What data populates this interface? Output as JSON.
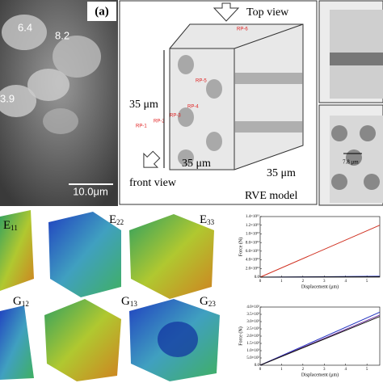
{
  "panel_a": {
    "label": "(a)",
    "dims": [
      "6.4",
      "8.2",
      "3.9"
    ],
    "scale_bar": "10.0μm"
  },
  "rve": {
    "top_view": "Top view",
    "reference_points": [
      "RP-6",
      "RP-5",
      "RP-4",
      "RP-3",
      "RP-2",
      "RP-1"
    ],
    "dims": [
      "35 μm",
      "35 μm",
      "35 μm"
    ],
    "front_view": "front view",
    "caption": "RVE model",
    "spacing": "7.8 μm"
  },
  "moduli": [
    {
      "symbol": "E",
      "sub": "11"
    },
    {
      "symbol": "E",
      "sub": "22"
    },
    {
      "symbol": "E",
      "sub": "33"
    },
    {
      "symbol": "G",
      "sub": "12"
    },
    {
      "symbol": "G",
      "sub": "13"
    },
    {
      "symbol": "G",
      "sub": "23"
    }
  ],
  "plots": [
    {
      "x_label": "Displacement (μm)",
      "y_label": "Force (N)",
      "xlim": [
        0,
        5.6
      ],
      "ylim": [
        0,
        14000000000000.0
      ],
      "xticks": [
        0,
        1,
        2,
        3,
        4,
        5
      ],
      "yticks": [
        {
          "value": 0,
          "label": "0.0"
        },
        {
          "value": 2000000000000.0,
          "label": "2.0×10¹²"
        },
        {
          "value": 4000000000000.0,
          "label": "4.0×10¹²"
        },
        {
          "value": 6000000000000.0,
          "label": "6.0×10¹²"
        },
        {
          "value": 8000000000000.0,
          "label": "8.0×10¹²"
        },
        {
          "value": 10000000000000.0,
          "label": "1.0×10¹³"
        },
        {
          "value": 12000000000000.0,
          "label": "1.2×10¹³"
        },
        {
          "value": 14000000000000.0,
          "label": "1.4×10¹³"
        }
      ],
      "series": [
        {
          "color": "#d03020",
          "x": [
            0,
            5.6
          ],
          "values": [
            0,
            12000000000000.0
          ]
        },
        {
          "color": "#2030c0",
          "x": [
            0,
            5.6
          ],
          "values": [
            0,
            200000000000.0
          ]
        },
        {
          "color": "#111111",
          "x": [
            0,
            5.6
          ],
          "values": [
            0,
            100000000000.0
          ]
        }
      ]
    },
    {
      "x_label": "Displacement (μm)",
      "y_label": "Force (N)",
      "xlim": [
        0,
        5.6
      ],
      "ylim": [
        0,
        4000
      ],
      "xticks": [
        0,
        1,
        2,
        3,
        4,
        5
      ],
      "yticks": [
        {
          "value": 0,
          "label": "0.0"
        },
        {
          "value": 500,
          "label": "5.0×10²"
        },
        {
          "value": 1000,
          "label": "1.0×10³"
        },
        {
          "value": 1500,
          "label": "1.5×10³"
        },
        {
          "value": 2000,
          "label": "2.0×10³"
        },
        {
          "value": 2500,
          "label": "2.5×10³"
        },
        {
          "value": 3000,
          "label": "3.0×10³"
        },
        {
          "value": 3500,
          "label": "3.5×10³"
        },
        {
          "value": 4000,
          "label": "4.0×10³"
        }
      ],
      "series": [
        {
          "color": "#2030c0",
          "x": [
            0,
            5.6
          ],
          "values": [
            0,
            3650
          ]
        },
        {
          "color": "#7030a0",
          "x": [
            0,
            5.6
          ],
          "values": [
            0,
            3450
          ]
        },
        {
          "color": "#111111",
          "x": [
            0,
            5.6
          ],
          "values": [
            0,
            3350
          ]
        }
      ]
    }
  ]
}
